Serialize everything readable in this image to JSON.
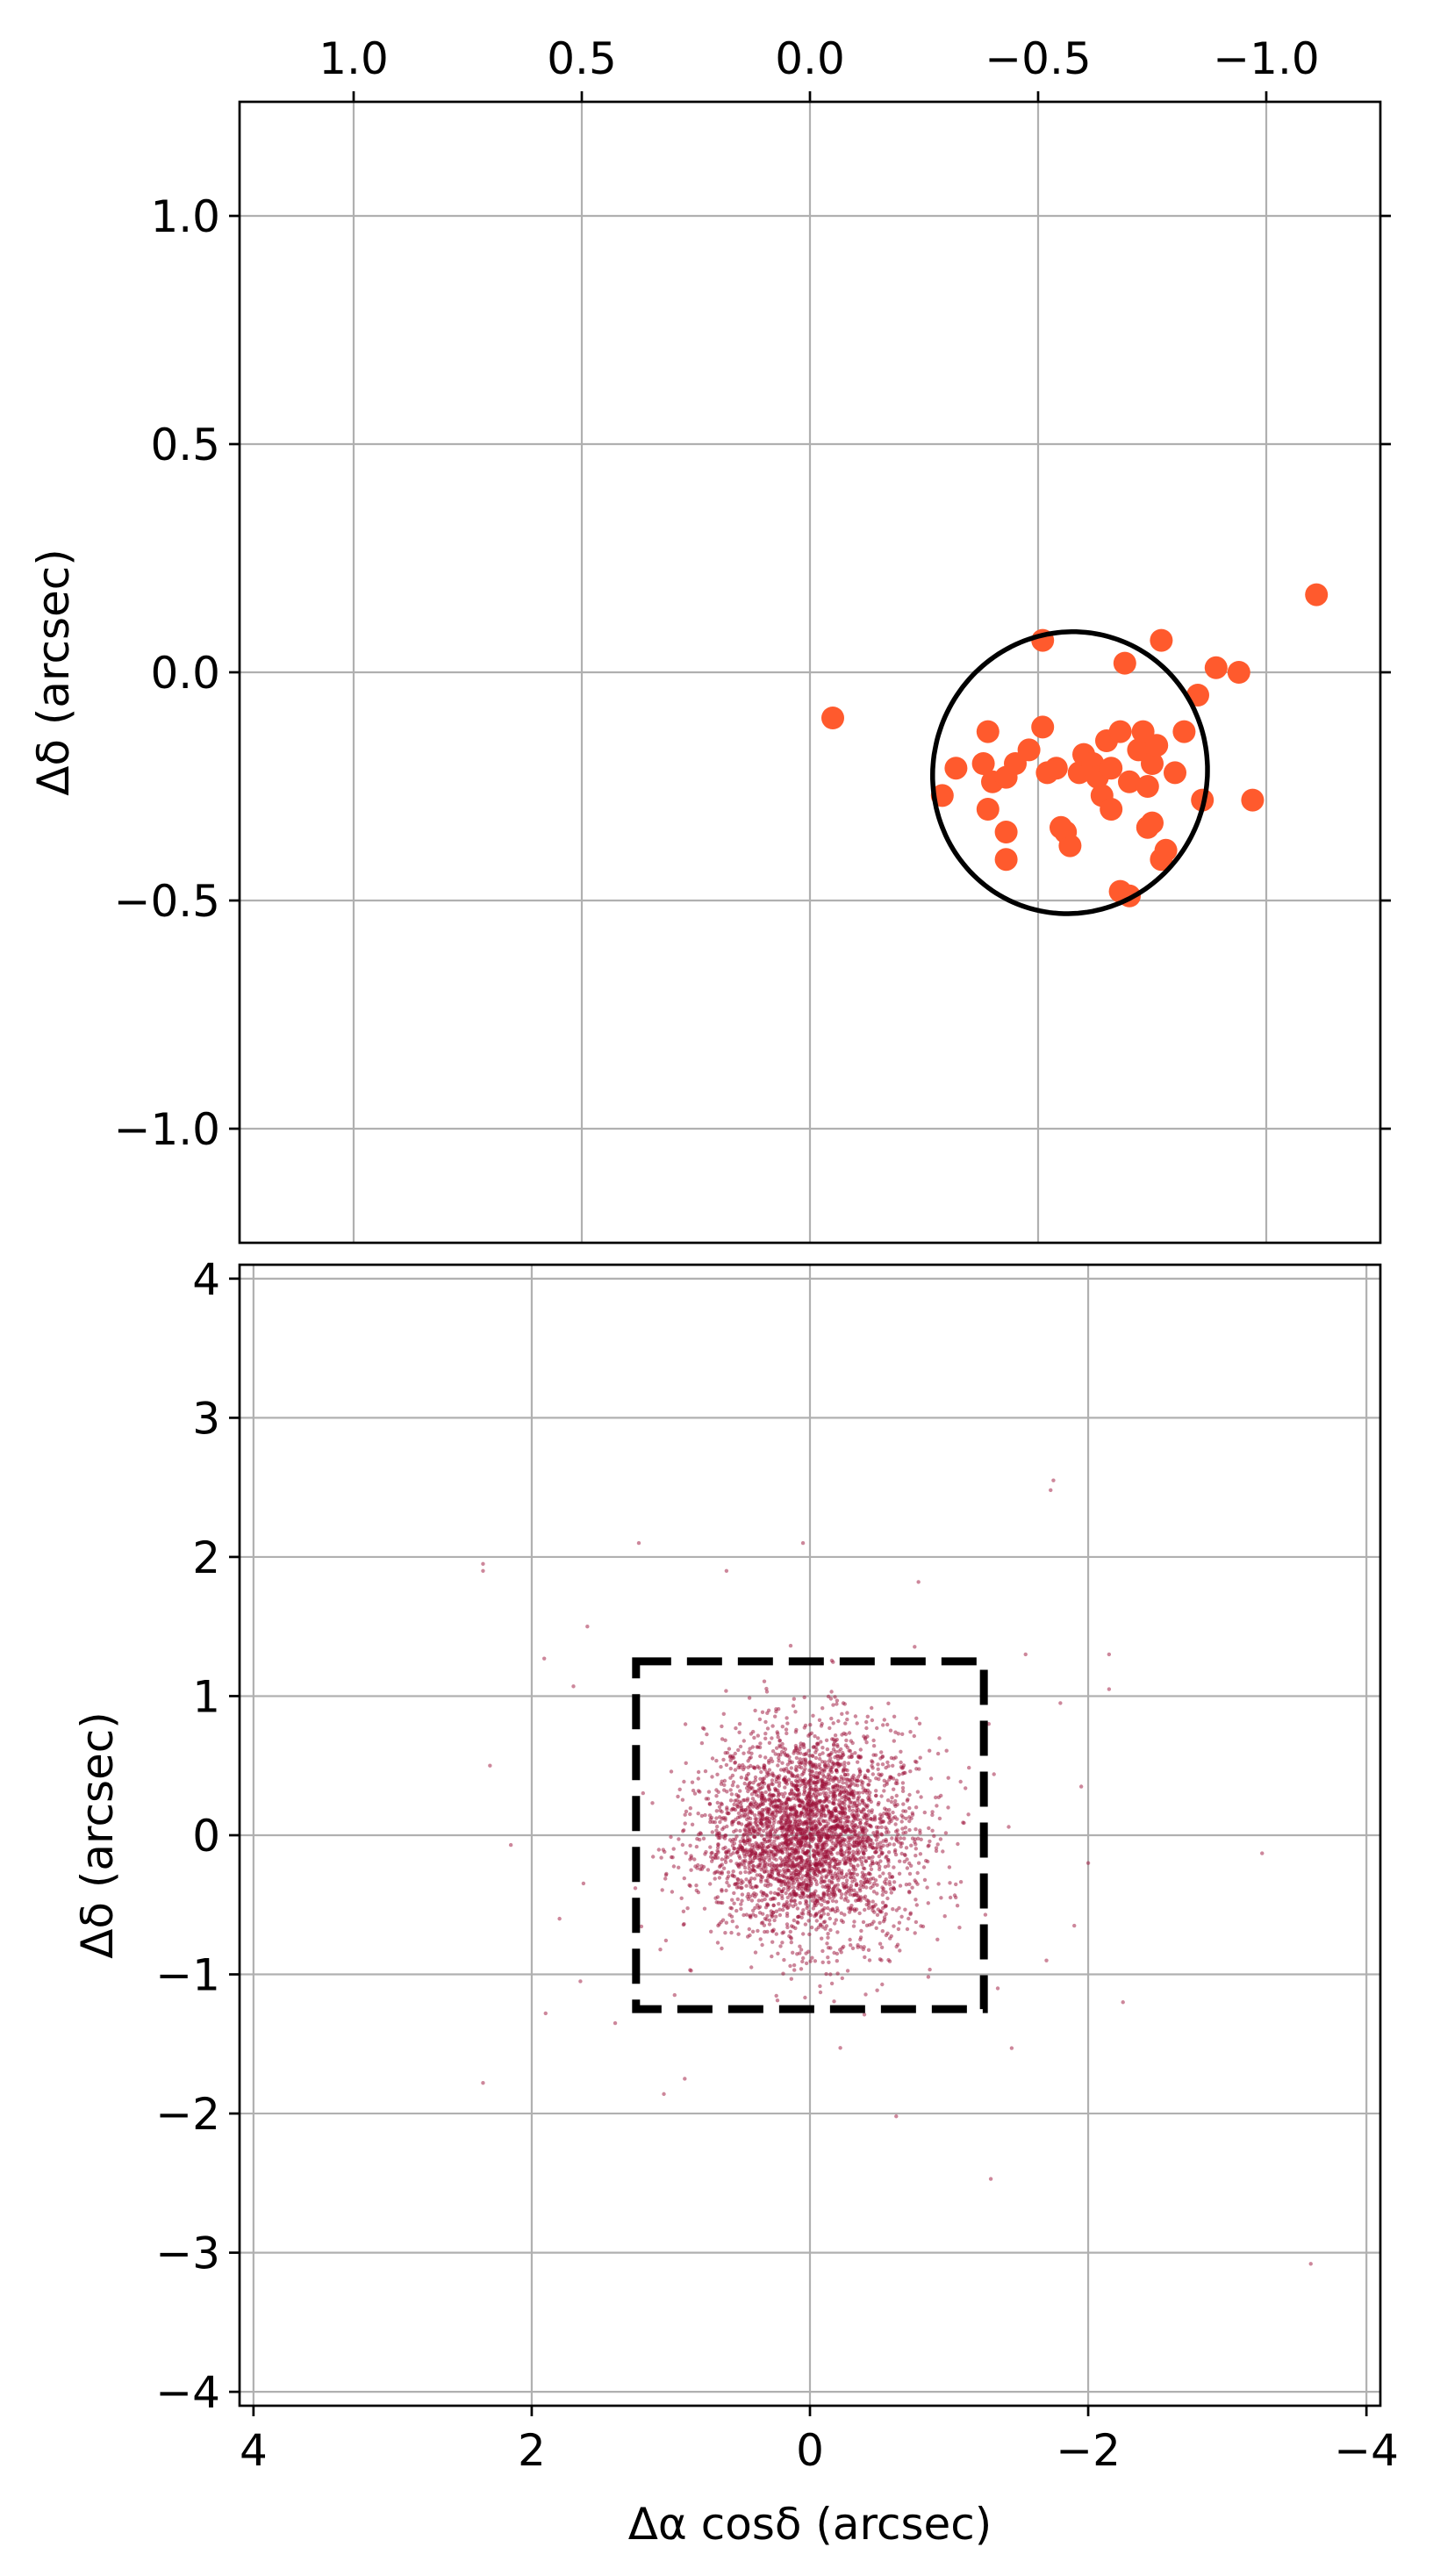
{
  "chart_data": [
    {
      "type": "scatter",
      "panel": "top",
      "title": "",
      "xlabel": "",
      "ylabel": "Δδ (arcsec)",
      "xlim": [
        1.25,
        -1.25
      ],
      "ylim": [
        -1.25,
        1.25
      ],
      "xaxis_inverted": true,
      "xaxis_position": "top",
      "grid": true,
      "x_ticks": [
        1.0,
        0.5,
        0.0,
        -0.5,
        -1.0
      ],
      "x_tick_labels": [
        "1.0",
        "0.5",
        "0.0",
        "−0.5",
        "−1.0"
      ],
      "y_ticks": [
        1.0,
        0.5,
        0.0,
        -0.5,
        -1.0
      ],
      "y_tick_labels": [
        "1.0",
        "0.5",
        "0.0",
        "−0.5",
        "−1.0"
      ],
      "marker_color": "#ff5a2d",
      "points": [
        [
          -0.05,
          -0.1
        ],
        [
          -1.11,
          0.17
        ],
        [
          -0.51,
          0.07
        ],
        [
          -0.77,
          0.07
        ],
        [
          -0.69,
          0.02
        ],
        [
          -0.89,
          0.01
        ],
        [
          -0.94,
          0.0
        ],
        [
          -0.51,
          -0.12
        ],
        [
          -0.85,
          -0.05
        ],
        [
          -0.97,
          -0.28
        ],
        [
          -0.32,
          -0.21
        ],
        [
          -0.29,
          -0.27
        ],
        [
          -0.38,
          -0.2
        ],
        [
          -0.39,
          -0.13
        ],
        [
          -0.4,
          -0.24
        ],
        [
          -0.43,
          -0.23
        ],
        [
          -0.45,
          -0.2
        ],
        [
          -0.48,
          -0.17
        ],
        [
          -0.52,
          -0.22
        ],
        [
          -0.56,
          -0.35
        ],
        [
          -0.59,
          -0.22
        ],
        [
          -0.6,
          -0.18
        ],
        [
          -0.62,
          -0.2
        ],
        [
          -0.63,
          -0.23
        ],
        [
          -0.64,
          -0.27
        ],
        [
          -0.65,
          -0.15
        ],
        [
          -0.66,
          -0.21
        ],
        [
          -0.66,
          -0.3
        ],
        [
          -0.68,
          -0.13
        ],
        [
          -0.7,
          -0.24
        ],
        [
          -0.72,
          -0.17
        ],
        [
          -0.73,
          -0.13
        ],
        [
          -0.74,
          -0.25
        ],
        [
          -0.74,
          -0.34
        ],
        [
          -0.75,
          -0.2
        ],
        [
          -0.76,
          -0.16
        ],
        [
          -0.77,
          -0.41
        ],
        [
          -0.78,
          -0.39
        ],
        [
          -0.8,
          -0.22
        ],
        [
          -0.82,
          -0.13
        ],
        [
          -0.86,
          -0.28
        ],
        [
          -0.68,
          -0.48
        ],
        [
          -0.7,
          -0.49
        ],
        [
          -0.57,
          -0.38
        ],
        [
          -0.43,
          -0.41
        ],
        [
          -0.43,
          -0.35
        ],
        [
          -0.39,
          -0.3
        ],
        [
          -0.54,
          -0.21
        ],
        [
          -0.55,
          -0.34
        ],
        [
          -0.75,
          -0.33
        ]
      ],
      "ellipse": {
        "center": [
          -0.57,
          -0.22
        ],
        "semi_axes": [
          0.3,
          0.31
        ],
        "angle_deg": 20,
        "color": "#000000"
      }
    },
    {
      "type": "scatter",
      "panel": "bottom",
      "title": "",
      "xlabel": "Δα cosδ (arcsec)",
      "ylabel": "Δδ (arcsec)",
      "xlim": [
        4.1,
        -4.1
      ],
      "ylim": [
        -4.1,
        4.1
      ],
      "xaxis_inverted": true,
      "grid": true,
      "x_ticks": [
        4,
        2,
        0,
        -2,
        -4
      ],
      "x_tick_labels": [
        "4",
        "2",
        "0",
        "−2",
        "−4"
      ],
      "y_ticks": [
        4,
        3,
        2,
        1,
        0,
        -1,
        -2,
        -3,
        -4
      ],
      "y_tick_labels": [
        "4",
        "3",
        "2",
        "1",
        "0",
        "−1",
        "−2",
        "−3",
        "−4"
      ],
      "marker_color": "#9b1037",
      "cloud": {
        "center": [
          0.0,
          0.0
        ],
        "sigma": 0.38,
        "count": 3400
      },
      "outliers": [
        [
          2.35,
          1.95
        ],
        [
          2.35,
          1.9
        ],
        [
          -1.75,
          2.55
        ],
        [
          -1.73,
          2.48
        ],
        [
          2.3,
          0.5
        ],
        [
          2.15,
          -0.07
        ],
        [
          2.35,
          -1.78
        ],
        [
          -3.25,
          -0.13
        ],
        [
          -3.6,
          -3.08
        ],
        [
          -2.25,
          -1.2
        ],
        [
          -1.3,
          -2.47
        ],
        [
          -0.62,
          -2.02
        ],
        [
          1.23,
          2.1
        ],
        [
          0.05,
          2.1
        ],
        [
          -0.78,
          1.82
        ],
        [
          1.91,
          1.27
        ],
        [
          1.7,
          1.07
        ],
        [
          -2.15,
          1.3
        ],
        [
          -2.15,
          1.05
        ],
        [
          -1.8,
          0.95
        ],
        [
          -1.9,
          -0.65
        ],
        [
          -1.45,
          -1.53
        ],
        [
          1.9,
          -1.28
        ],
        [
          -1.95,
          0.35
        ],
        [
          -2.0,
          -0.2
        ],
        [
          1.65,
          -1.05
        ],
        [
          0.9,
          -1.75
        ],
        [
          1.05,
          -1.86
        ],
        [
          -1.55,
          1.3
        ],
        [
          1.6,
          1.5
        ],
        [
          1.4,
          -1.35
        ],
        [
          -1.35,
          -1.1
        ],
        [
          1.8,
          -0.6
        ],
        [
          -1.7,
          -0.9
        ],
        [
          0.6,
          1.9
        ]
      ],
      "box": {
        "x": [
          -1.25,
          1.25
        ],
        "y": [
          -1.25,
          1.25
        ],
        "style": "dashed",
        "color": "#000000"
      }
    }
  ]
}
